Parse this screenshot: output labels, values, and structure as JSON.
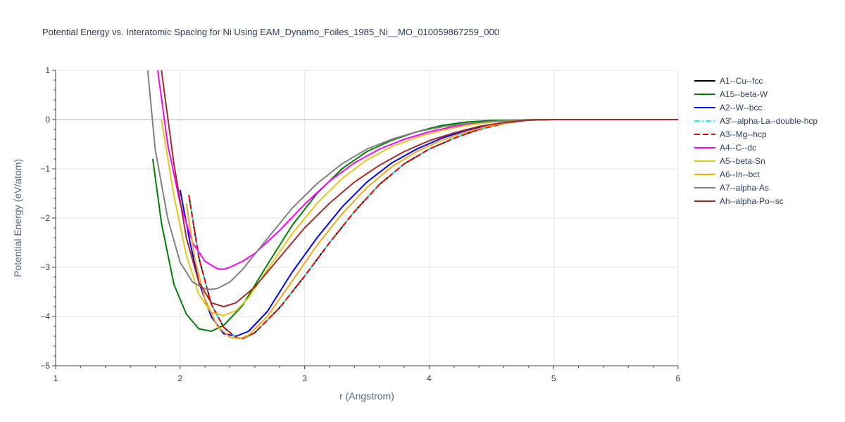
{
  "chart_data": {
    "type": "line",
    "title": "Potential Energy vs. Interatomic Spacing for Ni Using EAM_Dynamo_Foiles_1985_Ni__MO_010059867259_000",
    "xlabel": "r (Angstrom)",
    "ylabel": "Potential Energy (eV/atom)",
    "xlim": [
      1,
      6
    ],
    "ylim": [
      -5,
      1
    ],
    "xticks": [
      1,
      2,
      3,
      4,
      5,
      6
    ],
    "yticks": [
      1,
      0,
      -1,
      -2,
      -3,
      -4,
      -5
    ],
    "xtick_labels": [
      "1",
      "2",
      "3",
      "4",
      "5",
      "6"
    ],
    "ytick_labels": [
      "1",
      "0",
      "−1",
      "−2",
      "−3",
      "−4",
      "−5"
    ],
    "grid": true,
    "legend_position": "right",
    "series": [
      {
        "name": "A1--Cu--fcc",
        "color": "#000000",
        "dash": "solid",
        "x": [
          2.07,
          2.15,
          2.25,
          2.35,
          2.45,
          2.5,
          2.6,
          2.8,
          3.0,
          3.2,
          3.4,
          3.6,
          3.8,
          4.0,
          4.2,
          4.4,
          4.6,
          4.8,
          5.0,
          6.0
        ],
        "y": [
          -1.53,
          -2.8,
          -3.75,
          -4.22,
          -4.43,
          -4.45,
          -4.33,
          -3.82,
          -3.18,
          -2.5,
          -1.87,
          -1.32,
          -0.9,
          -0.6,
          -0.38,
          -0.2,
          -0.08,
          -0.01,
          0,
          0
        ]
      },
      {
        "name": "A15--beta-W",
        "color": "#008000",
        "dash": "solid",
        "x": [
          1.78,
          1.85,
          1.95,
          2.05,
          2.15,
          2.25,
          2.35,
          2.5,
          2.7,
          2.9,
          3.1,
          3.3,
          3.5,
          3.7,
          3.9,
          4.1,
          4.3,
          4.5,
          4.7,
          4.85,
          5.0,
          6.0
        ],
        "y": [
          -0.8,
          -2.1,
          -3.35,
          -3.95,
          -4.25,
          -4.3,
          -4.18,
          -3.78,
          -2.95,
          -2.15,
          -1.5,
          -1.0,
          -0.65,
          -0.42,
          -0.25,
          -0.12,
          -0.05,
          -0.02,
          -0.01,
          0,
          0,
          0
        ]
      },
      {
        "name": "A2--W--bcc",
        "color": "#0000ff",
        "dash": "solid",
        "x": [
          2.0,
          2.08,
          2.15,
          2.25,
          2.35,
          2.45,
          2.55,
          2.7,
          2.9,
          3.1,
          3.3,
          3.5,
          3.7,
          3.9,
          4.1,
          4.3,
          4.5,
          4.7,
          4.85,
          5.0,
          6.0
        ],
        "y": [
          -1.43,
          -2.5,
          -3.3,
          -4.0,
          -4.35,
          -4.4,
          -4.3,
          -3.9,
          -3.1,
          -2.4,
          -1.78,
          -1.27,
          -0.88,
          -0.6,
          -0.38,
          -0.22,
          -0.1,
          -0.03,
          0,
          0,
          0
        ]
      },
      {
        "name": "A3'--alpha-La--double-hcp",
        "color": "#00ffff",
        "dash": "dashdot",
        "x": [
          2.07,
          2.15,
          2.25,
          2.35,
          2.45,
          2.5,
          2.6,
          2.8,
          3.0,
          3.2,
          3.4,
          3.6,
          3.8,
          4.0,
          4.2,
          4.4,
          4.6,
          4.8,
          5.0,
          6.0
        ],
        "y": [
          -1.53,
          -2.8,
          -3.75,
          -4.22,
          -4.43,
          -4.45,
          -4.33,
          -3.82,
          -3.18,
          -2.5,
          -1.87,
          -1.32,
          -0.9,
          -0.6,
          -0.38,
          -0.2,
          -0.08,
          -0.01,
          0,
          0
        ]
      },
      {
        "name": "A3--Mg--hcp",
        "color": "#ff0000",
        "dash": "dash",
        "x": [
          2.07,
          2.15,
          2.25,
          2.35,
          2.45,
          2.5,
          2.6,
          2.8,
          3.0,
          3.2,
          3.4,
          3.6,
          3.8,
          4.0,
          4.2,
          4.4,
          4.6,
          4.8,
          5.0,
          6.0
        ],
        "y": [
          -1.53,
          -2.8,
          -3.75,
          -4.22,
          -4.43,
          -4.45,
          -4.33,
          -3.82,
          -3.18,
          -2.5,
          -1.87,
          -1.32,
          -0.9,
          -0.6,
          -0.38,
          -0.2,
          -0.08,
          -0.01,
          0,
          0
        ]
      },
      {
        "name": "A4--C--dc",
        "color": "#ff00ff",
        "dash": "solid",
        "x": [
          1.82,
          1.9,
          2.0,
          2.1,
          2.2,
          2.3,
          2.35,
          2.4,
          2.5,
          2.6,
          2.8,
          3.0,
          3.2,
          3.4,
          3.6,
          3.8,
          4.0,
          4.2,
          4.4,
          4.6,
          4.8,
          5.0,
          6.0
        ],
        "y": [
          1.0,
          -0.5,
          -1.7,
          -2.5,
          -2.88,
          -3.03,
          -3.04,
          -3.0,
          -2.88,
          -2.72,
          -2.25,
          -1.72,
          -1.25,
          -0.88,
          -0.6,
          -0.4,
          -0.25,
          -0.14,
          -0.07,
          -0.03,
          -0.01,
          0,
          0
        ]
      },
      {
        "name": "A5--beta-Sn",
        "color": "#e6c619",
        "dash": "solid",
        "x": [
          1.85,
          1.95,
          2.05,
          2.15,
          2.25,
          2.35,
          2.45,
          2.55,
          2.7,
          2.9,
          3.1,
          3.3,
          3.5,
          3.7,
          3.9,
          4.1,
          4.3,
          4.5,
          4.7,
          4.85,
          5.0,
          6.0
        ],
        "y": [
          0.0,
          -1.55,
          -2.75,
          -3.55,
          -3.92,
          -3.98,
          -3.88,
          -3.62,
          -3.05,
          -2.32,
          -1.7,
          -1.2,
          -0.82,
          -0.55,
          -0.36,
          -0.22,
          -0.12,
          -0.05,
          -0.01,
          0,
          0,
          0
        ]
      },
      {
        "name": "A6--In--bct",
        "color": "#f4a61c",
        "dash": "solid",
        "x": [
          2.05,
          2.12,
          2.2,
          2.3,
          2.4,
          2.48,
          2.55,
          2.7,
          2.9,
          3.1,
          3.3,
          3.5,
          3.7,
          3.9,
          4.1,
          4.3,
          4.5,
          4.7,
          4.85,
          5.0,
          6.0
        ],
        "y": [
          -1.7,
          -2.85,
          -3.65,
          -4.2,
          -4.42,
          -4.45,
          -4.38,
          -4.0,
          -3.28,
          -2.55,
          -1.92,
          -1.38,
          -0.96,
          -0.65,
          -0.42,
          -0.25,
          -0.12,
          -0.04,
          0,
          0,
          0
        ]
      },
      {
        "name": "A7--alpha-As",
        "color": "#808080",
        "dash": "solid",
        "x": [
          1.74,
          1.8,
          1.9,
          2.0,
          2.1,
          2.2,
          2.25,
          2.3,
          2.4,
          2.5,
          2.7,
          2.9,
          3.1,
          3.3,
          3.5,
          3.7,
          3.9,
          4.1,
          4.3,
          4.5,
          4.7,
          4.85,
          5.0,
          6.0
        ],
        "y": [
          1.0,
          -0.6,
          -2.0,
          -2.9,
          -3.3,
          -3.44,
          -3.45,
          -3.43,
          -3.3,
          -3.05,
          -2.42,
          -1.8,
          -1.3,
          -0.9,
          -0.6,
          -0.4,
          -0.25,
          -0.15,
          -0.08,
          -0.04,
          -0.01,
          0,
          0,
          0
        ]
      },
      {
        "name": "Ah--alpha-Po--sc",
        "color": "#a52a2a",
        "dash": "solid",
        "x": [
          1.85,
          1.95,
          2.05,
          2.15,
          2.25,
          2.35,
          2.45,
          2.6,
          2.8,
          3.0,
          3.2,
          3.4,
          3.6,
          3.8,
          4.0,
          4.2,
          4.4,
          4.6,
          4.8,
          5.0,
          6.0
        ],
        "y": [
          1.0,
          -0.9,
          -2.4,
          -3.3,
          -3.72,
          -3.8,
          -3.72,
          -3.4,
          -2.8,
          -2.2,
          -1.7,
          -1.27,
          -0.93,
          -0.65,
          -0.43,
          -0.27,
          -0.14,
          -0.06,
          -0.01,
          0,
          0
        ]
      }
    ]
  }
}
